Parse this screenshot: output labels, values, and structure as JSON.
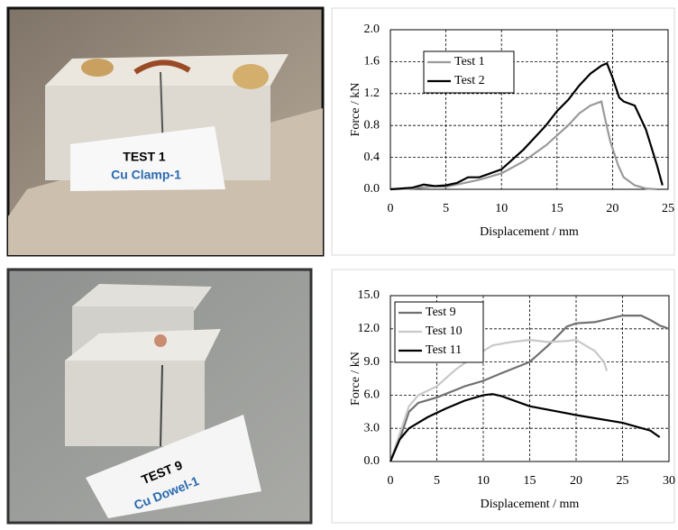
{
  "chart_data": [
    {
      "type": "line",
      "xlabel": "Displacement  / mm",
      "ylabel": "Force / kN",
      "xlim": [
        0,
        25
      ],
      "xticks": [
        0,
        5,
        10,
        15,
        20,
        25
      ],
      "ylim": [
        0,
        2
      ],
      "yticks": [
        {
          "value": 0,
          "label": "0.0"
        },
        0.4,
        0.8,
        1.2,
        1.6,
        {
          "value": 2,
          "label": "2.0"
        }
      ],
      "grid": true,
      "legend": "upper left",
      "series": [
        {
          "name": "Test 1",
          "color": "#9a9a9a",
          "x": [
            0,
            2,
            4,
            5,
            6,
            8,
            10,
            12,
            14,
            16,
            17,
            18,
            19,
            19.3,
            19.8,
            20.5,
            21,
            22,
            23,
            24
          ],
          "values": [
            0,
            0.01,
            0.04,
            0.03,
            0.06,
            0.12,
            0.2,
            0.35,
            0.55,
            0.8,
            0.95,
            1.05,
            1.1,
            0.9,
            0.6,
            0.3,
            0.15,
            0.05,
            0.01,
            0
          ]
        },
        {
          "name": "Test 2",
          "color": "#000000",
          "x": [
            0,
            2,
            3,
            4,
            5,
            6,
            7,
            8,
            10,
            12,
            14,
            15,
            16,
            17,
            18,
            19,
            19.5,
            20,
            20.6,
            21,
            22,
            23,
            24,
            24.5
          ],
          "values": [
            0,
            0.02,
            0.06,
            0.04,
            0.05,
            0.08,
            0.15,
            0.15,
            0.25,
            0.5,
            0.8,
            0.98,
            1.12,
            1.3,
            1.45,
            1.55,
            1.58,
            1.4,
            1.15,
            1.1,
            1.05,
            0.75,
            0.3,
            0.05
          ]
        }
      ]
    },
    {
      "type": "line",
      "xlabel": "Displacement  / mm",
      "ylabel": "Force / kN",
      "xlim": [
        0,
        30
      ],
      "xticks": [
        0,
        5,
        10,
        15,
        20,
        25,
        30
      ],
      "ylim": [
        0,
        15
      ],
      "yticks": [
        {
          "value": 0,
          "label": "0.0"
        },
        {
          "value": 3,
          "label": "3.0"
        },
        {
          "value": 6,
          "label": "6.0"
        },
        {
          "value": 9,
          "label": "9.0"
        },
        {
          "value": 12,
          "label": "12.0"
        },
        {
          "value": 15,
          "label": "15.0"
        }
      ],
      "grid": true,
      "legend": "upper left",
      "series": [
        {
          "name": "Test 9",
          "color": "#707070",
          "x": [
            0,
            1,
            2,
            3,
            5,
            8,
            10,
            12,
            15,
            17,
            19,
            20,
            22,
            25,
            27,
            28,
            29,
            30
          ],
          "values": [
            0,
            2,
            4.5,
            5.3,
            5.8,
            6.8,
            7.3,
            8,
            9,
            10.5,
            12.2,
            12.5,
            12.6,
            13.2,
            13.2,
            12.8,
            12.3,
            12
          ]
        },
        {
          "name": "Test 10",
          "color": "#c8c8c8",
          "x": [
            0,
            1,
            2,
            3,
            5,
            7,
            9,
            11,
            13,
            15,
            17,
            19,
            20,
            21,
            22,
            23,
            23.3
          ],
          "values": [
            0,
            2.5,
            5,
            6,
            6.8,
            8.3,
            9.5,
            10.5,
            10.8,
            11,
            10.8,
            10.9,
            11,
            10.5,
            10,
            9,
            8.2
          ]
        },
        {
          "name": "Test 11",
          "color": "#000000",
          "x": [
            0,
            0.5,
            1,
            2,
            4,
            6,
            8,
            10,
            11,
            12,
            15,
            20,
            25,
            28,
            29
          ],
          "values": [
            0,
            1,
            2,
            3,
            4,
            4.8,
            5.5,
            6,
            6.1,
            5.9,
            5,
            4.2,
            3.5,
            2.8,
            2.2
          ]
        }
      ]
    }
  ],
  "photos": [
    {
      "label": "TEST 1",
      "sublabel": "Cu Clamp-1"
    },
    {
      "label": "TEST 9",
      "sublabel": "Cu Dowel-1"
    }
  ]
}
